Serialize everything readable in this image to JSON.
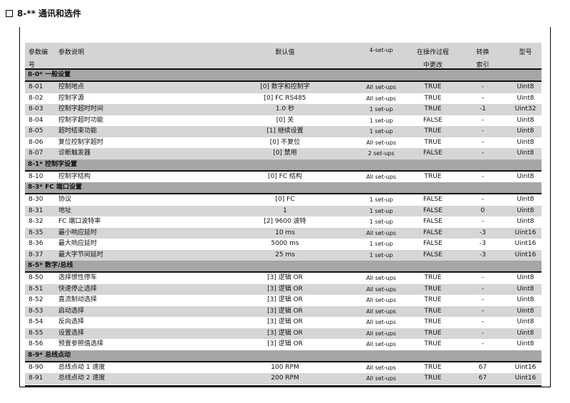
{
  "title": "8-** 通讯和选件",
  "headers": {
    "code": "参数编",
    "code2": "号",
    "desc": "参数说明",
    "default": "默认值",
    "setup": "4-set-up",
    "change": "在操作过程",
    "change2": "中更改",
    "conv": "转换",
    "conv2": "索引",
    "type": "型号"
  },
  "sections": [
    {
      "label": "8-0* 一般设置",
      "rows": [
        [
          "8-01",
          "控制地点",
          "[0] 数字和控制字",
          "All set-ups",
          "TRUE",
          "-",
          "Uint8"
        ],
        [
          "8-02",
          "控制字源",
          "[0] FC RS485",
          "All set-ups",
          "TRUE",
          "-",
          "Uint8"
        ],
        [
          "8-03",
          "控制字超时时间",
          "1.0 秒",
          "1 set-up",
          "TRUE",
          "-1",
          "Uint32"
        ],
        [
          "8-04",
          "控制字超时功能",
          "[0] 关",
          "1 set-up",
          "FALSE",
          "-",
          "Uint8"
        ],
        [
          "8-05",
          "超时结束功能",
          "[1] 继续设置",
          "1 set-up",
          "TRUE",
          "-",
          "Uint8"
        ],
        [
          "8-06",
          "复位控制字超时",
          "[0] 不复位",
          "All set-ups",
          "TRUE",
          "-",
          "Uint8"
        ],
        [
          "8-07",
          "诊断触发器",
          "[0] 禁用",
          "2 set-ups",
          "FALSE",
          "-",
          "Uint8"
        ]
      ]
    },
    {
      "label": "8-1* 控制字设置",
      "rows": [
        [
          "8-10",
          "控制字结构",
          "[0] FC 结构",
          "All set-ups",
          "TRUE",
          "-",
          "Uint8"
        ]
      ]
    },
    {
      "label": "8-3* FC 端口设置",
      "rows": [
        [
          "8-30",
          "协议",
          "[0] FC",
          "1 set-up",
          "FALSE",
          "-",
          "Uint8"
        ],
        [
          "8-31",
          "地址",
          "1",
          "1 set-up",
          "FALSE",
          "0",
          "Uint8"
        ],
        [
          "8-32",
          "FC 端口波特率",
          "[2] 9600 波特",
          "1 set-up",
          "FALSE",
          "-",
          "Uint8"
        ],
        [
          "8-35",
          "最小响应延时",
          "10 ms",
          "All set-ups",
          "FALSE",
          "-3",
          "Uint16"
        ],
        [
          "8-36",
          "最大响应延时",
          "5000 ms",
          "1 set-up",
          "FALSE",
          "-3",
          "Uint16"
        ],
        [
          "8-37",
          "最大字节间延时",
          "25 ms",
          "1 set-up",
          "FALSE",
          "-3",
          "Uint16"
        ]
      ]
    },
    {
      "label": "8-5* 数字/总线",
      "rows": [
        [
          "8-50",
          "选择惯性停车",
          "[3] 逻辑 OR",
          "All set-ups",
          "TRUE",
          "-",
          "Uint8"
        ],
        [
          "8-51",
          "快速停止选择",
          "[3] 逻辑 OR",
          "All set-ups",
          "TRUE",
          "-",
          "Uint8"
        ],
        [
          "8-52",
          "直流制动选择",
          "[3] 逻辑 OR",
          "All set-ups",
          "TRUE",
          "-",
          "Uint8"
        ],
        [
          "8-53",
          "启动选择",
          "[3] 逻辑 OR",
          "All set-ups",
          "TRUE",
          "-",
          "Uint8"
        ],
        [
          "8-54",
          "反向选择",
          "[3] 逻辑 OR",
          "All set-ups",
          "TRUE",
          "-",
          "Uint8"
        ],
        [
          "8-55",
          "设置选择",
          "[3] 逻辑 OR",
          "All set-ups",
          "TRUE",
          "-",
          "Uint8"
        ],
        [
          "8-56",
          "预置参照值选择",
          "[3] 逻辑 OR",
          "All set-ups",
          "TRUE",
          "-",
          "Uint8"
        ]
      ]
    },
    {
      "label": "8-9* 总线点动",
      "rows": [
        [
          "8-90",
          "总线点动 1 速度",
          "100 RPM",
          "All set-ups",
          "TRUE",
          "67",
          "Uint16"
        ],
        [
          "8-91",
          "总线点动 2 速度",
          "200 RPM",
          "All set-ups",
          "TRUE",
          "67",
          "Uint16"
        ]
      ]
    }
  ]
}
